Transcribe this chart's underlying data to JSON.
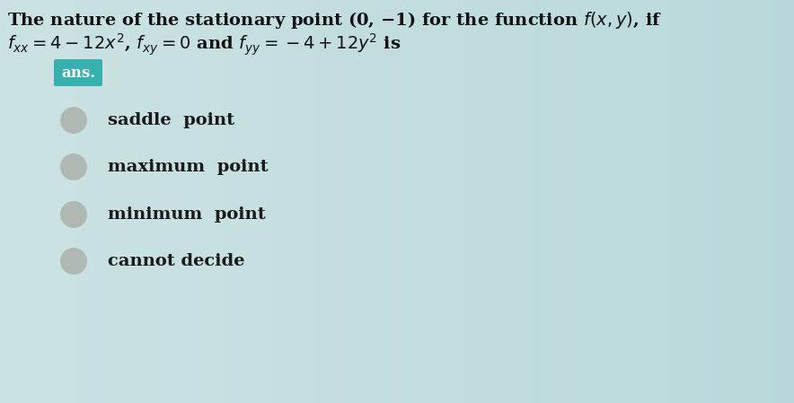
{
  "title_line1": "The nature of the stationary point (0, −1) for the function $f(x, y)$, if",
  "title_line2_plain": "$f_{xx} = 4 - 12x^2$, $f_{xy} = 0$ and $f_{yy} = -4 + 12y^2$ is",
  "ans_label": "ans.",
  "options": [
    "saddle  point",
    "maximum  point",
    "minimum  point",
    "cannot decide"
  ],
  "bg_color_left": "#c8dcd8",
  "bg_color_right": "#a8cece",
  "ans_box_color": "#38b0b0",
  "ans_box_text_color": "#ffffff",
  "option_text_color": "#1a1a1a",
  "radio_fill_color": "#b0b8b4",
  "radio_edge_color": "#909898",
  "title_color": "#111111",
  "font_size_title": 14,
  "font_size_options": 14,
  "font_size_ans": 12
}
